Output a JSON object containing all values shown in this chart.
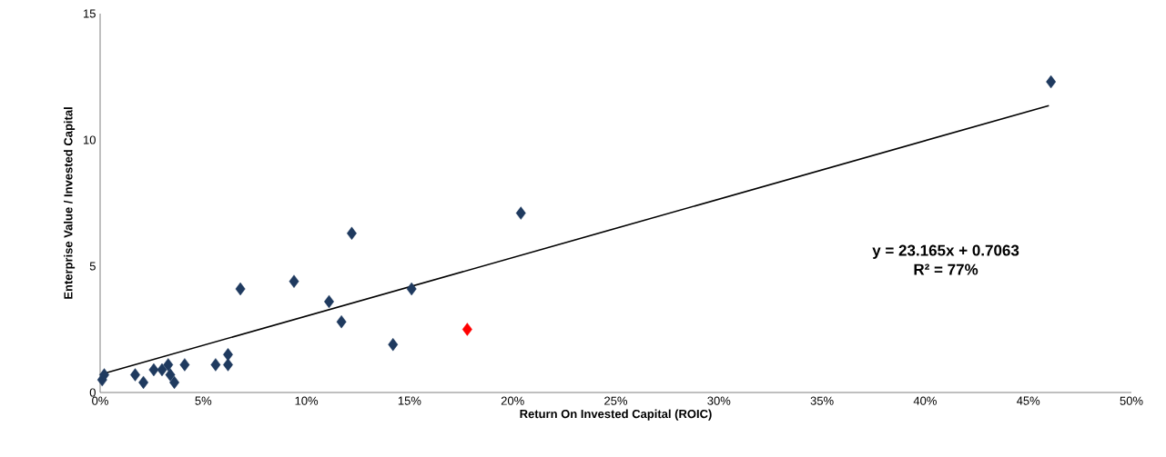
{
  "chart_data": {
    "type": "scatter",
    "xlabel": "Return On Invested Capital (ROIC)",
    "ylabel": "Enterprise Value / Invested Capital",
    "xlim": [
      0,
      50
    ],
    "ylim": [
      0,
      15
    ],
    "xticks": [
      {
        "value": 0,
        "label": "0%"
      },
      {
        "value": 5,
        "label": "5%"
      },
      {
        "value": 10,
        "label": "10%"
      },
      {
        "value": 15,
        "label": "15%"
      },
      {
        "value": 20,
        "label": "20%"
      },
      {
        "value": 25,
        "label": "25%"
      },
      {
        "value": 30,
        "label": "30%"
      },
      {
        "value": 35,
        "label": "35%"
      },
      {
        "value": 40,
        "label": "40%"
      },
      {
        "value": 45,
        "label": "45%"
      },
      {
        "value": 50,
        "label": "50%"
      }
    ],
    "yticks": [
      0,
      5,
      10,
      15
    ],
    "grid": false,
    "marker": "diamond",
    "series": [
      {
        "color": "#1f3a5f",
        "x": [
          0.1,
          0.2,
          1.7,
          2.1,
          2.6,
          3.0,
          3.3,
          3.4,
          3.6,
          4.1,
          5.6,
          6.2,
          6.2,
          6.8,
          9.4,
          11.1,
          11.7,
          12.2,
          14.2,
          15.1,
          20.4,
          46.1
        ],
        "values": [
          0.5,
          0.7,
          0.7,
          0.4,
          0.9,
          0.9,
          1.1,
          0.7,
          0.4,
          1.1,
          1.1,
          1.1,
          1.5,
          4.1,
          4.4,
          3.6,
          2.8,
          6.3,
          1.9,
          4.1,
          7.1,
          12.3
        ]
      },
      {
        "color": "#ff0000",
        "x": [
          17.8
        ],
        "values": [
          2.5
        ]
      },
      {
        "type": "line",
        "color": "#000000",
        "marker": "none",
        "x": [
          0,
          46
        ],
        "values": [
          0.71,
          11.36
        ]
      }
    ],
    "annotations": [
      "y = 23.165x + 0.7063",
      "R² = 77%"
    ]
  }
}
